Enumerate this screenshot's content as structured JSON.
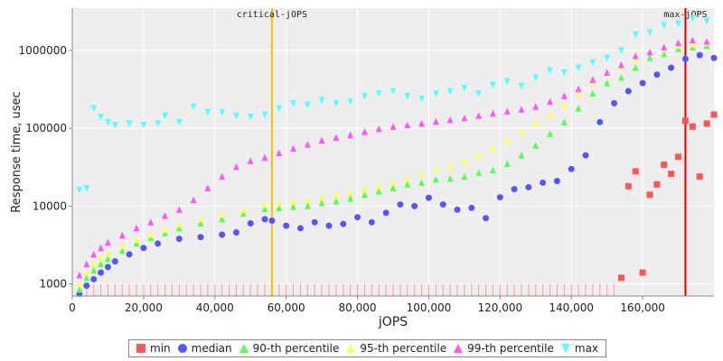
{
  "chart_data": {
    "type": "scatter",
    "title": "",
    "xlabel": "jOPS",
    "ylabel": "Response time, usec",
    "xlim": [
      0,
      180000
    ],
    "ylim": [
      700,
      3500000
    ],
    "yscale": "log",
    "grid": true,
    "legend_position": "bottom",
    "x_ticks": [
      "0",
      "20,000",
      "40,000",
      "60,000",
      "80,000",
      "100,000",
      "120,000",
      "140,000",
      "160,000"
    ],
    "y_ticks": [
      "1000",
      "10000",
      "100000",
      "1000000"
    ],
    "markers": [
      {
        "label": "critical-jOPS",
        "x": 56000,
        "color": "#f5c000"
      },
      {
        "label": "max-jOPS",
        "x": 172000,
        "color": "#dd0000"
      }
    ],
    "series": [
      {
        "name": "min",
        "color": "#ff5555",
        "marker": "square",
        "x": [
          154000,
          156000,
          158000,
          160000,
          162000,
          164000,
          166000,
          168000,
          170000,
          172000,
          174000,
          176000,
          178000,
          180000
        ],
        "y": [
          1200,
          18000,
          28000,
          1400,
          14000,
          19000,
          34000,
          26000,
          43000,
          125000,
          105000,
          24000,
          115000,
          150000
        ]
      },
      {
        "name": "median",
        "color": "#5555ff",
        "marker": "circle",
        "x": [
          2000,
          4000,
          6000,
          8000,
          10000,
          12000,
          16000,
          20000,
          24000,
          30000,
          36000,
          42000,
          46000,
          50000,
          54000,
          56000,
          60000,
          64000,
          68000,
          72000,
          76000,
          80000,
          84000,
          88000,
          92000,
          96000,
          100000,
          104000,
          108000,
          112000,
          116000,
          120000,
          124000,
          128000,
          132000,
          136000,
          140000,
          144000,
          148000,
          152000,
          156000,
          160000,
          164000,
          168000,
          172000,
          176000,
          180000
        ],
        "y": [
          750,
          950,
          1150,
          1400,
          1650,
          1950,
          2400,
          2900,
          3300,
          3800,
          4000,
          4300,
          4600,
          6000,
          6800,
          6500,
          5600,
          5200,
          6200,
          5600,
          5900,
          7200,
          6200,
          8200,
          10500,
          10000,
          12800,
          10500,
          9000,
          9500,
          7000,
          13000,
          16500,
          17500,
          20000,
          21000,
          30000,
          45000,
          120000,
          210000,
          300000,
          380000,
          490000,
          600000,
          780000,
          870000,
          800000
        ]
      },
      {
        "name": "90-th percentile",
        "color": "#55ff55",
        "marker": "triangle-up",
        "x": [
          2000,
          4000,
          6000,
          8000,
          10000,
          14000,
          18000,
          22000,
          26000,
          30000,
          36000,
          42000,
          48000,
          54000,
          58000,
          62000,
          66000,
          70000,
          74000,
          78000,
          82000,
          86000,
          90000,
          94000,
          98000,
          102000,
          106000,
          110000,
          114000,
          118000,
          122000,
          126000,
          130000,
          134000,
          138000,
          142000,
          146000,
          150000,
          154000,
          158000,
          162000,
          166000,
          170000,
          174000,
          178000
        ],
        "y": [
          850,
          1200,
          1500,
          1800,
          2100,
          2700,
          3300,
          3900,
          4500,
          5200,
          6000,
          6800,
          8000,
          9200,
          9500,
          9800,
          10000,
          11000,
          11500,
          12500,
          14000,
          15500,
          17000,
          19000,
          20000,
          22000,
          22500,
          24000,
          27000,
          29000,
          35000,
          45000,
          60000,
          85000,
          120000,
          180000,
          280000,
          380000,
          450000,
          600000,
          800000,
          900000,
          1050000,
          1100000,
          1150000
        ]
      },
      {
        "name": "95-th percentile",
        "color": "#ffff55",
        "marker": "triangle-up",
        "x": [
          2000,
          4000,
          6000,
          8000,
          10000,
          14000,
          18000,
          22000,
          26000,
          30000,
          36000,
          42000,
          48000,
          54000,
          58000,
          62000,
          66000,
          70000,
          74000,
          78000,
          82000,
          86000,
          90000,
          94000,
          98000,
          102000,
          106000,
          110000,
          114000,
          118000,
          122000,
          126000,
          130000,
          134000,
          138000,
          142000,
          146000,
          150000,
          154000,
          158000,
          162000,
          166000,
          170000,
          174000,
          178000
        ],
        "y": [
          1000,
          1400,
          1800,
          2200,
          2500,
          3100,
          3700,
          4300,
          5000,
          5800,
          6800,
          7800,
          9000,
          10500,
          11000,
          11500,
          12000,
          13000,
          14000,
          15000,
          16500,
          18000,
          20000,
          23000,
          26000,
          30000,
          33000,
          38000,
          45000,
          55000,
          70000,
          90000,
          115000,
          150000,
          200000,
          280000,
          400000,
          520000,
          620000,
          780000,
          950000,
          1050000,
          1150000,
          1200000,
          1250000
        ]
      },
      {
        "name": "99-th percentile",
        "color": "#ff55ff",
        "marker": "triangle-up",
        "x": [
          2000,
          4000,
          6000,
          8000,
          10000,
          14000,
          18000,
          22000,
          26000,
          30000,
          34000,
          38000,
          42000,
          46000,
          50000,
          54000,
          58000,
          62000,
          66000,
          70000,
          74000,
          78000,
          82000,
          86000,
          90000,
          94000,
          98000,
          102000,
          106000,
          110000,
          114000,
          118000,
          122000,
          126000,
          130000,
          134000,
          138000,
          142000,
          146000,
          150000,
          154000,
          158000,
          162000,
          166000,
          170000,
          174000,
          178000
        ],
        "y": [
          1300,
          1800,
          2400,
          2900,
          3400,
          4200,
          5200,
          6200,
          7500,
          9000,
          12000,
          17000,
          24000,
          32000,
          38000,
          42000,
          48000,
          55000,
          62000,
          70000,
          76000,
          82000,
          90000,
          98000,
          105000,
          110000,
          115000,
          122000,
          128000,
          135000,
          145000,
          155000,
          165000,
          175000,
          190000,
          220000,
          260000,
          320000,
          420000,
          520000,
          650000,
          850000,
          950000,
          1100000,
          1250000,
          1350000,
          1300000
        ]
      },
      {
        "name": "max",
        "color": "#55ffff",
        "marker": "triangle-down",
        "x": [
          2000,
          4000,
          6000,
          8000,
          10000,
          12000,
          16000,
          20000,
          24000,
          26000,
          30000,
          34000,
          38000,
          42000,
          46000,
          50000,
          54000,
          58000,
          62000,
          66000,
          70000,
          74000,
          78000,
          82000,
          86000,
          90000,
          94000,
          98000,
          102000,
          106000,
          110000,
          114000,
          118000,
          122000,
          126000,
          130000,
          134000,
          138000,
          142000,
          146000,
          150000,
          154000,
          158000,
          162000,
          166000,
          170000,
          174000,
          178000
        ],
        "y": [
          16000,
          17000,
          180000,
          140000,
          120000,
          110000,
          115000,
          110000,
          115000,
          145000,
          120000,
          190000,
          160000,
          160000,
          145000,
          140000,
          150000,
          180000,
          210000,
          200000,
          230000,
          210000,
          220000,
          260000,
          280000,
          300000,
          260000,
          240000,
          280000,
          300000,
          330000,
          280000,
          360000,
          400000,
          350000,
          450000,
          550000,
          520000,
          600000,
          700000,
          800000,
          1000000,
          1600000,
          1700000,
          2100000,
          2200000,
          2600000,
          2400000
        ]
      }
    ]
  },
  "legend": {
    "items": [
      {
        "label": "min",
        "color": "#ff5555",
        "shape": "square"
      },
      {
        "label": "median",
        "color": "#5555ff",
        "shape": "circle"
      },
      {
        "label": "90-th percentile",
        "color": "#55ff55",
        "shape": "tri-up"
      },
      {
        "label": "95-th percentile",
        "color": "#ffff55",
        "shape": "tri-up"
      },
      {
        "label": "99-th percentile",
        "color": "#ff55ff",
        "shape": "tri-up"
      },
      {
        "label": "max",
        "color": "#55ffff",
        "shape": "tri-down"
      }
    ]
  }
}
